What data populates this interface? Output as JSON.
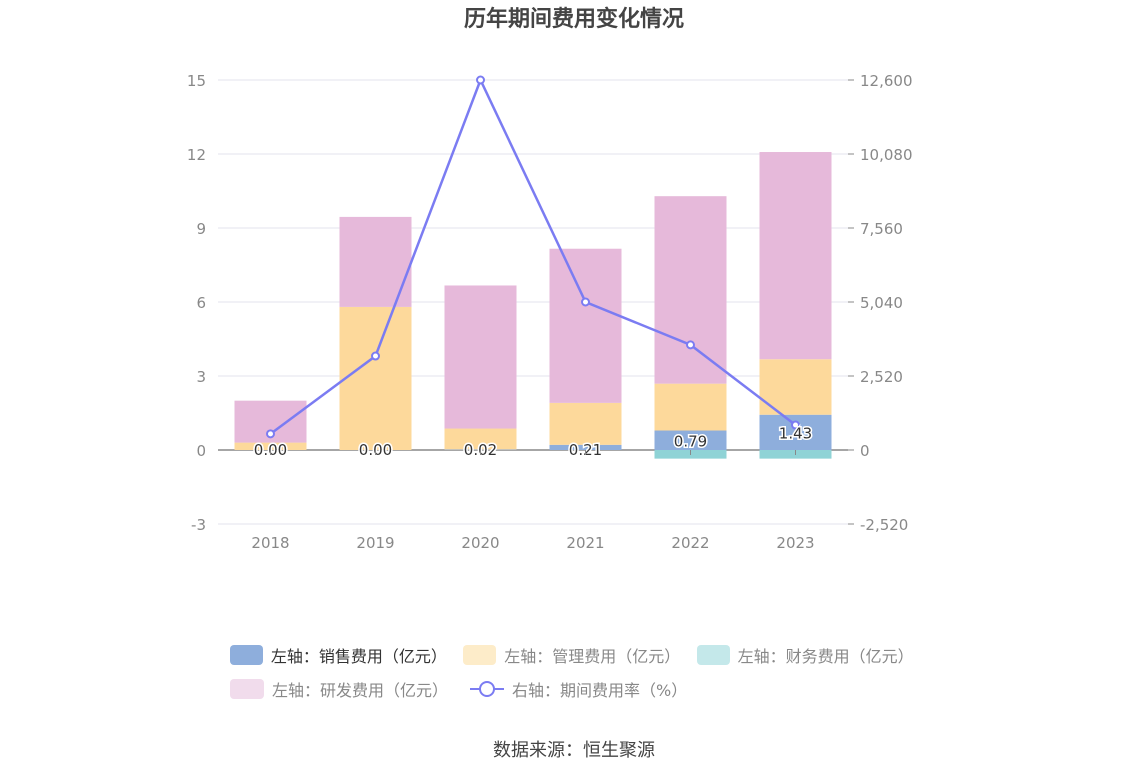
{
  "chart_data": {
    "type": "bar",
    "title": "历年期间费用变化情况",
    "categories": [
      "2018",
      "2019",
      "2020",
      "2021",
      "2022",
      "2023"
    ],
    "left_axis": {
      "ticks": [
        "-3",
        "0",
        "3",
        "6",
        "9",
        "12",
        "15"
      ],
      "range": [
        -3,
        15
      ]
    },
    "right_axis": {
      "ticks": [
        "-2,520",
        "0",
        "2,520",
        "5,040",
        "7,560",
        "10,080",
        "12,600"
      ],
      "range": [
        -2520,
        12600
      ]
    },
    "series": [
      {
        "name": "左轴：销售费用（亿元）",
        "type": "bar",
        "axis": "left",
        "color": "#8eaedc",
        "values": [
          0.0,
          0.0,
          0.02,
          0.21,
          0.79,
          1.43
        ]
      },
      {
        "name": "左轴：管理费用（亿元）",
        "type": "bar",
        "axis": "left",
        "color": "#fdd99b",
        "values": [
          0.3,
          5.8,
          0.85,
          1.7,
          1.9,
          2.25
        ]
      },
      {
        "name": "左轴：财务费用（亿元）",
        "type": "bar",
        "axis": "left",
        "color": "#8fd3d6",
        "values": [
          0.0,
          0.0,
          0.0,
          0.0,
          -0.35,
          -0.35
        ]
      },
      {
        "name": "左轴：研发费用（亿元）",
        "type": "bar",
        "axis": "left",
        "color": "#e6b9da",
        "values": [
          1.7,
          3.65,
          5.8,
          6.25,
          7.6,
          8.4
        ]
      },
      {
        "name": "右轴：期间费用率（%）",
        "type": "line",
        "axis": "right",
        "color": "#7b7cf2",
        "values": [
          550,
          3200,
          12600,
          5040,
          3580,
          850
        ]
      }
    ],
    "data_labels": [
      "0.00",
      "0.00",
      "0.02",
      "0.21",
      "0.79",
      "1.43"
    ]
  },
  "legend": {
    "items": [
      {
        "label": "左轴：销售费用（亿元）",
        "color": "#8eaedc"
      },
      {
        "label": "左轴：管理费用（亿元）",
        "color": "#fdecc9"
      },
      {
        "label": "左轴：财务费用（亿元）",
        "color": "#c4e8ea"
      },
      {
        "label": "左轴：研发费用（亿元）",
        "color": "#f1dcec"
      },
      {
        "label": "右轴：期间费用率（%）",
        "color": "#7b7cf2"
      }
    ]
  },
  "source": "数据来源：恒生聚源"
}
